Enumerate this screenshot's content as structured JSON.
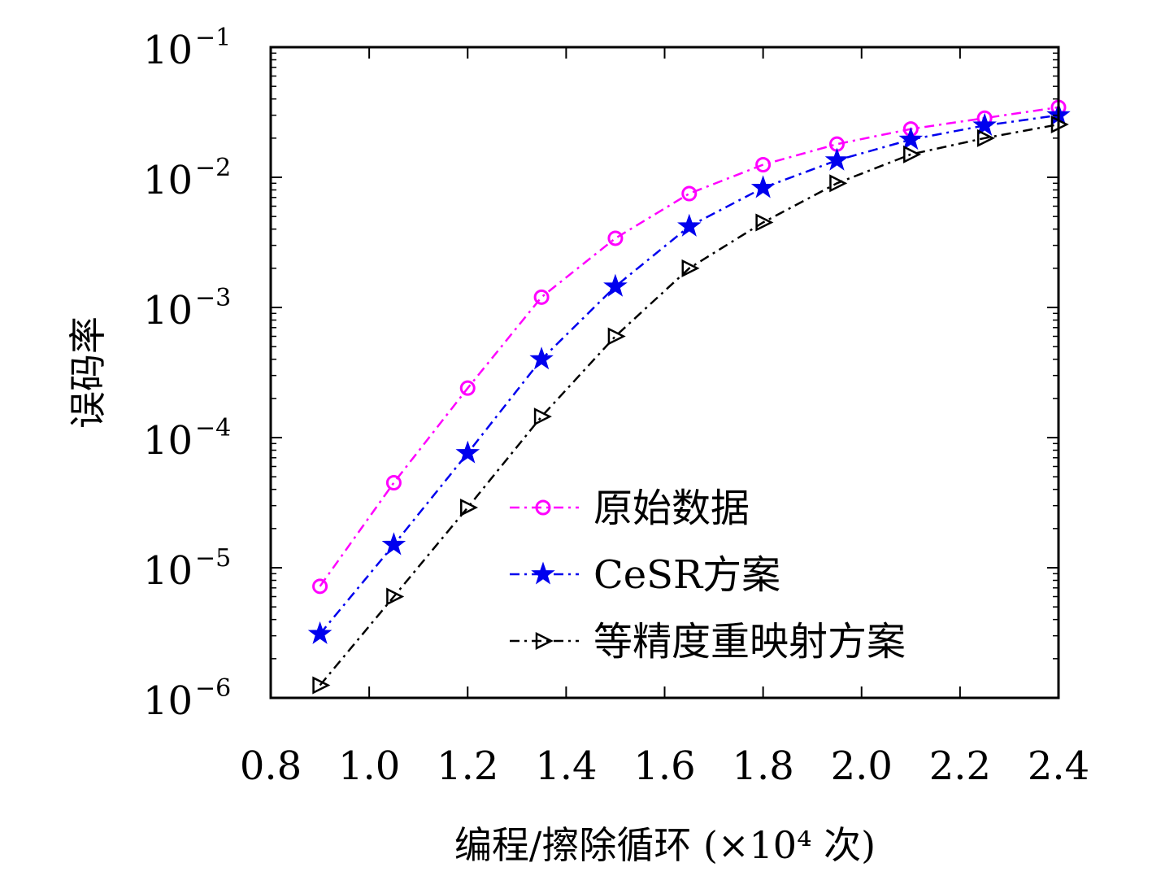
{
  "chart_data": {
    "type": "line",
    "xlabel": "编程/擦除循环 (×10⁴ 次)",
    "ylabel": "误码率",
    "x": [
      0.9,
      1.05,
      1.2,
      1.35,
      1.5,
      1.65,
      1.8,
      1.95,
      2.1,
      2.25,
      2.4
    ],
    "xlim": [
      0.8,
      2.4
    ],
    "ylim": [
      1e-06,
      0.1
    ],
    "yscale": "log",
    "xticks": [
      "0.8",
      "1.0",
      "1.2",
      "1.4",
      "1.6",
      "1.8",
      "2.0",
      "2.2",
      "2.4"
    ],
    "yticks": [
      {
        "base": "10",
        "exp": "−6"
      },
      {
        "base": "10",
        "exp": "−5"
      },
      {
        "base": "10",
        "exp": "−4"
      },
      {
        "base": "10",
        "exp": "−3"
      },
      {
        "base": "10",
        "exp": "−2"
      },
      {
        "base": "10",
        "exp": "−1"
      }
    ],
    "grid": false,
    "legend_position": "bottom-right",
    "series": [
      {
        "name": "原始数据",
        "color": "#ff00ff",
        "marker": "circle",
        "values": [
          7.2e-06,
          4.5e-05,
          0.00024,
          0.0012,
          0.0034,
          0.0075,
          0.0125,
          0.018,
          0.0235,
          0.0285,
          0.0345
        ]
      },
      {
        "name": "CeSR方案",
        "color": "#0000ee",
        "marker": "star",
        "values": [
          3.1e-06,
          1.5e-05,
          7.6e-05,
          0.0004,
          0.00145,
          0.0042,
          0.0083,
          0.0135,
          0.0195,
          0.025,
          0.03
        ]
      },
      {
        "name": "等精度重映射方案",
        "color": "#000000",
        "marker": "triangle-right",
        "values": [
          1.25e-06,
          6e-06,
          2.9e-05,
          0.000145,
          0.0006,
          0.002,
          0.0045,
          0.009,
          0.015,
          0.02,
          0.0255
        ]
      }
    ]
  }
}
